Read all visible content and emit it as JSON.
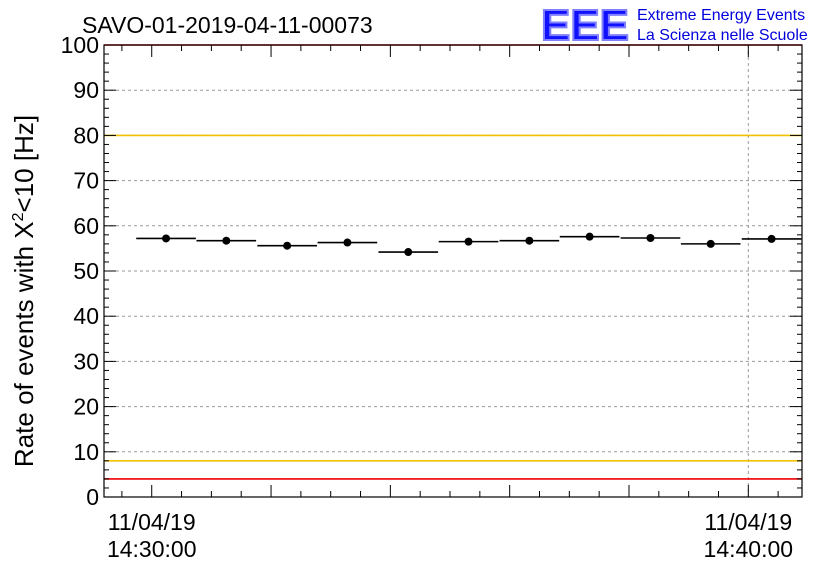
{
  "chart_data": {
    "type": "scatter",
    "title": "SAVO-01-2019-04-11-00073",
    "ylabel": "Rate of events with X",
    "ylabel_sup": "2",
    "ylabel_tail": "<10 [Hz]",
    "ylim": [
      0,
      100
    ],
    "yticks": [
      0,
      10,
      20,
      30,
      40,
      50,
      60,
      70,
      80,
      90,
      100
    ],
    "x_tick_labels": [
      {
        "date": "11/04/19",
        "time": "14:30:00"
      },
      {
        "date": "11/04/19",
        "time": "14:40:00"
      }
    ],
    "xlim_minutes": [
      -0.8,
      10.9
    ],
    "grid": true,
    "points": [
      {
        "x": 0.24,
        "y": 57.2
      },
      {
        "x": 1.25,
        "y": 56.7
      },
      {
        "x": 2.27,
        "y": 55.6
      },
      {
        "x": 3.28,
        "y": 56.3
      },
      {
        "x": 4.3,
        "y": 54.2
      },
      {
        "x": 5.31,
        "y": 56.5
      },
      {
        "x": 6.33,
        "y": 56.7
      },
      {
        "x": 7.34,
        "y": 57.6
      },
      {
        "x": 8.36,
        "y": 57.3
      },
      {
        "x": 9.37,
        "y": 56.0
      },
      {
        "x": 10.39,
        "y": 57.1
      }
    ],
    "bin_half_width_minutes": 0.5,
    "threshold_lines": [
      {
        "y": 100,
        "color": "#ee0000"
      },
      {
        "y": 80,
        "color": "#f2c100"
      },
      {
        "y": 8,
        "color": "#f2c100"
      },
      {
        "y": 4,
        "color": "#ee0000"
      }
    ]
  },
  "logo": {
    "mark": "EEE",
    "line1": "Extreme Energy Events",
    "line2": "La Scienza nelle Scuole",
    "color": "#0000dd"
  }
}
